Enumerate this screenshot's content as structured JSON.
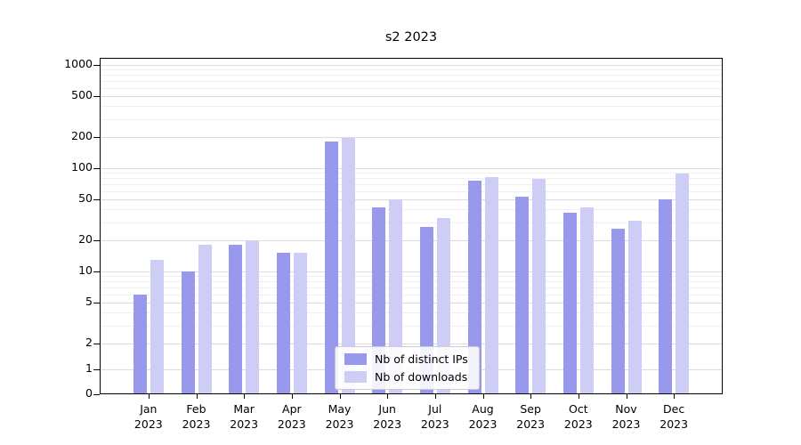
{
  "chart_data": {
    "type": "bar",
    "title": "s2 2023",
    "scale": "symlog",
    "grid": "horizontal",
    "legend_position": "lower center",
    "categories": [
      "Jan",
      "Feb",
      "Mar",
      "Apr",
      "May",
      "Jun",
      "Jul",
      "Aug",
      "Sep",
      "Oct",
      "Nov",
      "Dec"
    ],
    "category_year": "2023",
    "yticks": [
      0,
      1,
      2,
      5,
      10,
      20,
      50,
      100,
      200,
      500,
      1000
    ],
    "ylim": [
      0,
      1000
    ],
    "series": [
      {
        "name": "Nb of distinct IPs",
        "color": "#9898ec",
        "values": [
          6,
          10,
          18,
          15,
          180,
          42,
          27,
          75,
          53,
          37,
          26,
          50
        ]
      },
      {
        "name": "Nb of downloads",
        "color": "#cdcdf6",
        "values": [
          13,
          18,
          20,
          15,
          195,
          50,
          33,
          82,
          78,
          42,
          31,
          88
        ]
      }
    ]
  }
}
